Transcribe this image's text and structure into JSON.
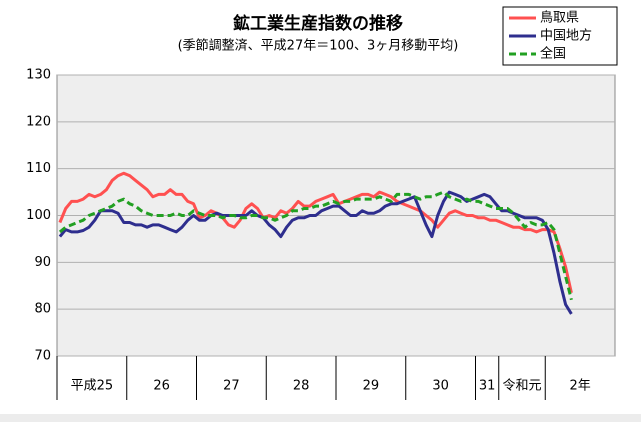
{
  "chart_data": {
    "type": "line",
    "title": "鉱工業生産指数の推移",
    "subtitle": "(季節調整済、平成27年＝100、3ヶ月移動平均)",
    "groups": [
      {
        "label": "平成25",
        "span": 12
      },
      {
        "label": "26",
        "span": 12
      },
      {
        "label": "27",
        "span": 12
      },
      {
        "label": "28",
        "span": 12
      },
      {
        "label": "29",
        "span": 12
      },
      {
        "label": "30",
        "span": 12
      },
      {
        "label": "31",
        "span": 4
      },
      {
        "label": "令和元",
        "span": 8
      },
      {
        "label": "2年",
        "span": 12
      }
    ],
    "ylim": [
      70,
      130
    ],
    "yticks": [
      70,
      80,
      90,
      100,
      110,
      120,
      130
    ],
    "grid": true,
    "legend": "upper right",
    "series": [
      {
        "name": "鳥取県",
        "color": "#ff5050",
        "dashed": false,
        "values": [
          98.5,
          101.5,
          103,
          103,
          103.5,
          104.5,
          104,
          104.5,
          105.5,
          107.5,
          108.5,
          109,
          108.5,
          107.5,
          106.5,
          105.5,
          104,
          104.5,
          104.5,
          105.5,
          104.5,
          104.5,
          103,
          102.5,
          99.5,
          100,
          101,
          100.5,
          99.5,
          98,
          97.5,
          99,
          101.5,
          102.5,
          101.5,
          99.5,
          100,
          99.5,
          101,
          100.5,
          101.5,
          103,
          102,
          102,
          103,
          103.5,
          104,
          104.5,
          102.5,
          103,
          103.5,
          104,
          104.5,
          104.5,
          104,
          105,
          104.5,
          104,
          103,
          102.5,
          102,
          101.5,
          101,
          100,
          99,
          97.5,
          99,
          100.5,
          101,
          100.5,
          100,
          100,
          99.5,
          99.5,
          99,
          99,
          98.5,
          98,
          97.5,
          97.5,
          97,
          97,
          96.5,
          97,
          97,
          96.5,
          93,
          89,
          83.5
        ]
      },
      {
        "name": "中国地方",
        "color": "#2e2e8e",
        "dashed": false,
        "values": [
          95.5,
          97,
          96.5,
          96.5,
          96.8,
          97.5,
          99,
          101,
          101,
          101,
          100.5,
          98.5,
          98.5,
          98,
          98,
          97.5,
          98,
          98,
          97.5,
          97,
          96.5,
          97.5,
          99,
          100,
          99,
          99,
          100,
          100.5,
          100,
          100,
          100,
          100,
          100,
          101,
          100,
          99.5,
          98,
          97,
          95.5,
          97.5,
          99,
          99.5,
          99.5,
          100,
          100,
          101,
          101.5,
          102,
          102,
          101,
          100,
          100,
          101,
          100.5,
          100.5,
          101,
          102,
          102.5,
          102.5,
          103,
          103.5,
          104,
          101,
          98,
          95.5,
          100,
          103,
          105,
          104.5,
          104,
          103,
          103.5,
          104,
          104.5,
          104,
          102.5,
          101,
          101,
          100.5,
          100,
          99.5,
          99.5,
          99.5,
          99,
          97,
          92,
          86,
          81,
          79
        ]
      },
      {
        "name": "全国",
        "color": "#22a022",
        "dashed": true,
        "values": [
          96.5,
          97.5,
          98,
          98.5,
          99,
          100,
          100.5,
          101,
          101.5,
          102,
          103,
          103.5,
          102.5,
          102,
          101,
          100.5,
          100,
          100,
          100,
          100,
          100.5,
          100,
          100,
          101,
          100.5,
          100,
          100,
          100,
          99.5,
          100,
          100,
          99.5,
          99.5,
          100,
          100,
          99.5,
          99.5,
          99,
          99.5,
          100,
          101,
          101,
          101.5,
          101.5,
          102,
          102,
          102.5,
          103,
          102.5,
          103,
          103,
          103.5,
          103.5,
          103.5,
          103.5,
          104,
          103.5,
          103,
          104.5,
          104.5,
          104.5,
          104,
          103.5,
          104,
          104,
          104.5,
          105,
          104,
          103.5,
          103,
          103.5,
          103,
          103,
          102.5,
          102,
          101.5,
          101.5,
          101.5,
          100.5,
          99,
          97.5,
          98.5,
          98,
          98,
          98.5,
          97,
          92,
          87,
          82
        ]
      }
    ]
  }
}
